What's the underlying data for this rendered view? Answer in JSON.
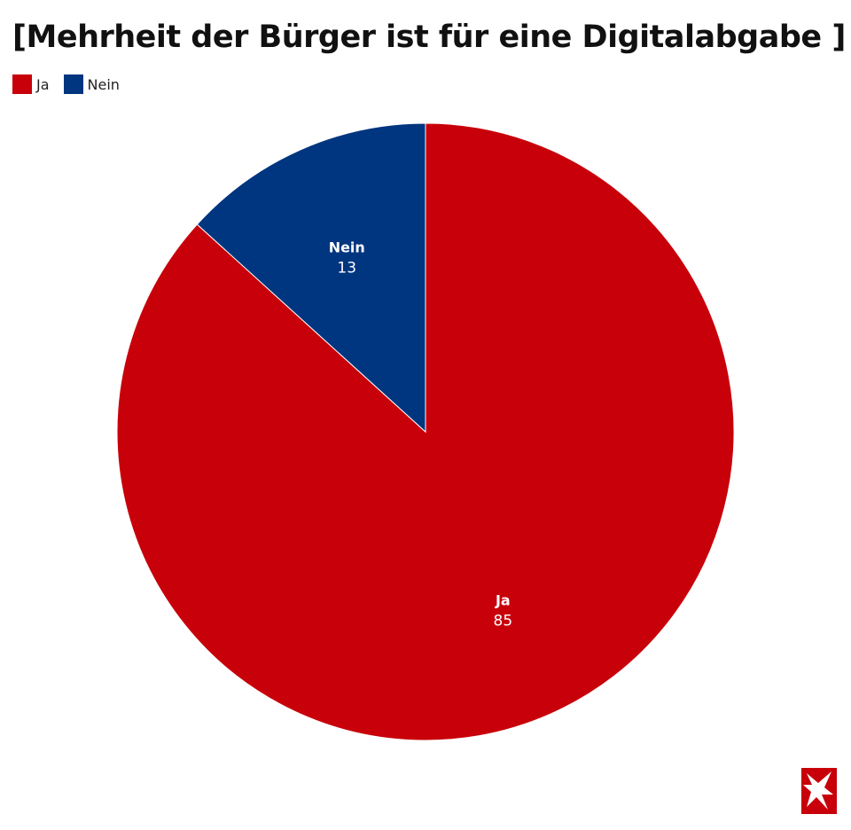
{
  "chart_data": {
    "type": "pie",
    "title": "[Mehrheit der Bürger ist für eine Digitalabgabe ]",
    "slices": [
      {
        "label": "Ja",
        "value": 85,
        "color": "#c8000a"
      },
      {
        "label": "Nein",
        "value": 13,
        "color": "#00357f"
      }
    ],
    "legend_position": "top-left",
    "data_labels": "inside"
  },
  "legend": [
    {
      "label": "Ja",
      "color": "#c8000a"
    },
    {
      "label": "Nein",
      "color": "#00357f"
    }
  ],
  "logo": {
    "icon": "stern-star-logo-icon",
    "color": "#c8000a"
  }
}
